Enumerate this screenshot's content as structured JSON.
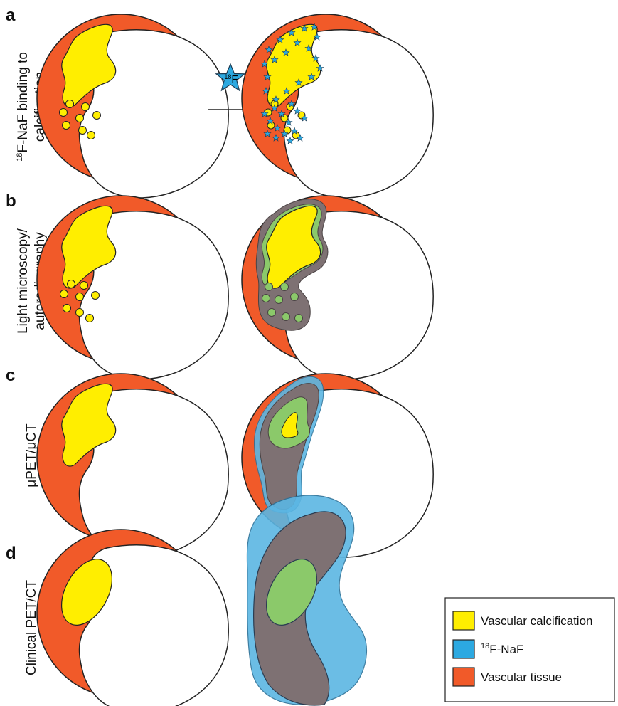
{
  "colors": {
    "tissue": "#f15a29",
    "calcification": "#ffee00",
    "naf": "#5bb6e3",
    "overlap_green": "#8bc96a",
    "overlap_gray": "#7e7173",
    "star": "#2ca9e1"
  },
  "panels": {
    "a": {
      "letter": "a",
      "label_sup": "18",
      "label_line1": "F-NaF binding to",
      "label_line2": "calcification"
    },
    "b": {
      "letter": "b",
      "label_line1": "Light microscopy/",
      "label_line2": "autoradiography"
    },
    "c": {
      "letter": "c",
      "label_line1": "μPET/μCT"
    },
    "d": {
      "letter": "d",
      "label_line1": "Clinical PET/CT"
    }
  },
  "tracer_badge": {
    "sup": "18",
    "text": "F"
  },
  "legend": {
    "items": [
      {
        "label": "Vascular calcification",
        "color": "#ffee00",
        "icon": "yellow-swatch"
      },
      {
        "sup": "18",
        "label": "F-NaF",
        "color": "#2ca9e1",
        "icon": "blue-swatch"
      },
      {
        "label": "Vascular tissue",
        "color": "#f15a29",
        "icon": "orange-swatch"
      }
    ]
  }
}
